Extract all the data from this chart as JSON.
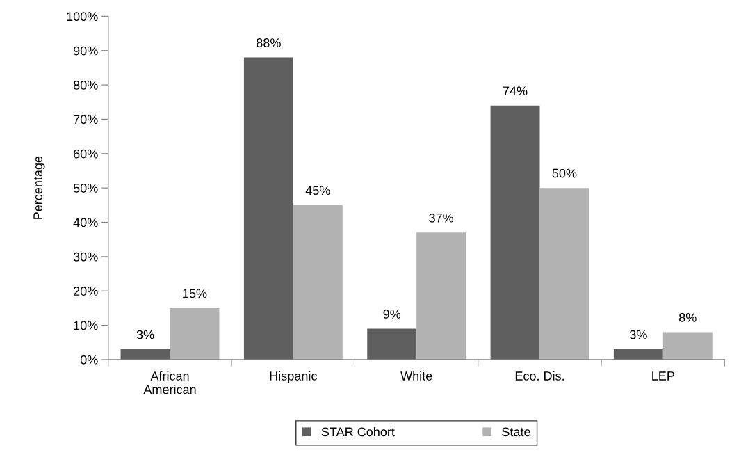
{
  "chart_data": {
    "type": "bar",
    "ylabel": "Percentage",
    "categories": [
      "African\nAmerican",
      "Hispanic",
      "White",
      "Eco. Dis.",
      "LEP"
    ],
    "series": [
      {
        "name": "STAR Cohort",
        "color": "#5f5f5f",
        "values": [
          3,
          88,
          9,
          74,
          3
        ],
        "value_labels": [
          "3%",
          "88%",
          "9%",
          "74%",
          "3%"
        ]
      },
      {
        "name": "State",
        "color": "#b2b2b2",
        "values": [
          15,
          45,
          37,
          50,
          8
        ],
        "value_labels": [
          "15%",
          "45%",
          "37%",
          "50%",
          "8%"
        ]
      }
    ],
    "ylim": [
      0,
      100
    ],
    "yticks": [
      {
        "value": 0,
        "label": "0%"
      },
      {
        "value": 10,
        "label": "10%"
      },
      {
        "value": 20,
        "label": "20%"
      },
      {
        "value": 30,
        "label": "30%"
      },
      {
        "value": 40,
        "label": "40%"
      },
      {
        "value": 50,
        "label": "50%"
      },
      {
        "value": 60,
        "label": "60%"
      },
      {
        "value": 70,
        "label": "70%"
      },
      {
        "value": 80,
        "label": "80%"
      },
      {
        "value": 90,
        "label": "90%"
      },
      {
        "value": 100,
        "label": "100%"
      }
    ],
    "grid": false,
    "legend": "bottom"
  }
}
